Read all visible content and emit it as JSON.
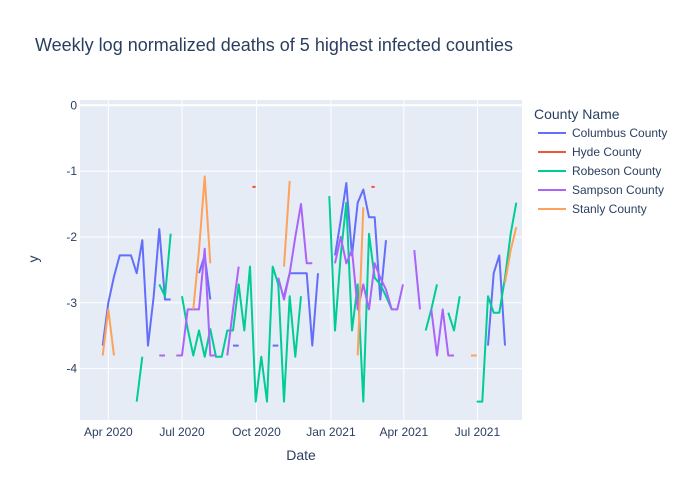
{
  "chart_data": {
    "type": "line",
    "title": "Weekly log normalized deaths of 5 highest infected counties",
    "xlabel": "Date",
    "ylabel": "y",
    "xlim": [
      "2020-02-26",
      "2021-08-25"
    ],
    "ylim": [
      -4.78,
      0.08
    ],
    "x_ticks": [
      {
        "date": "2020-04-01",
        "label": "Apr 2020"
      },
      {
        "date": "2020-07-01",
        "label": "Jul 2020"
      },
      {
        "date": "2020-10-01",
        "label": "Oct 2020"
      },
      {
        "date": "2021-01-01",
        "label": "Jan 2021"
      },
      {
        "date": "2021-04-01",
        "label": "Apr 2021"
      },
      {
        "date": "2021-07-01",
        "label": "Jul 2021"
      }
    ],
    "y_ticks": [
      0,
      -1,
      -2,
      -3,
      -4
    ],
    "grid": true,
    "legend": {
      "title": "County Name",
      "position": "right"
    },
    "series": [
      {
        "name": "Columbus County",
        "color": "#636efa",
        "segments": [
          [
            [
              "2020-03-25",
              -3.65
            ],
            [
              "2020-04-01",
              -3.0
            ],
            [
              "2020-04-08",
              -2.6
            ],
            [
              "2020-04-15",
              -2.28
            ],
            [
              "2020-04-22",
              -2.28
            ],
            [
              "2020-04-29",
              -2.28
            ],
            [
              "2020-05-06",
              -2.55
            ],
            [
              "2020-05-13",
              -2.05
            ],
            [
              "2020-05-20",
              -3.65
            ],
            [
              "2020-05-27",
              -2.9
            ],
            [
              "2020-06-03",
              -1.88
            ],
            [
              "2020-06-10",
              -2.95
            ],
            [
              "2020-06-17",
              -2.95
            ]
          ],
          [
            [
              "2020-07-22",
              -2.55
            ],
            [
              "2020-07-29",
              -2.28
            ],
            [
              "2020-08-05",
              -2.95
            ]
          ],
          [
            [
              "2020-09-02",
              -3.65
            ],
            [
              "2020-09-09",
              -3.65
            ]
          ],
          [
            [
              "2020-10-21",
              -3.65
            ],
            [
              "2020-10-28",
              -3.65
            ]
          ],
          [
            [
              "2020-11-04",
              -2.9
            ],
            [
              "2020-11-11",
              -2.55
            ],
            [
              "2020-11-18",
              -2.55
            ],
            [
              "2020-11-25",
              -2.55
            ],
            [
              "2020-12-02",
              -2.55
            ],
            [
              "2020-12-09",
              -3.65
            ],
            [
              "2020-12-16",
              -2.55
            ]
          ],
          [
            [
              "2021-01-06",
              -2.28
            ],
            [
              "2021-01-13",
              -1.75
            ],
            [
              "2021-01-20",
              -1.18
            ],
            [
              "2021-01-27",
              -2.28
            ],
            [
              "2021-02-03",
              -1.48
            ],
            [
              "2021-02-10",
              -1.28
            ],
            [
              "2021-02-17",
              -1.7
            ],
            [
              "2021-02-24",
              -1.7
            ],
            [
              "2021-03-03",
              -2.95
            ],
            [
              "2021-03-10",
              -2.05
            ]
          ],
          [
            [
              "2021-07-14",
              -3.65
            ],
            [
              "2021-07-21",
              -2.55
            ],
            [
              "2021-07-28",
              -2.28
            ],
            [
              "2021-08-04",
              -3.65
            ]
          ]
        ]
      },
      {
        "name": "Hyde County",
        "color": "#ef553b",
        "segments": [
          [
            [
              "2020-09-26",
              -1.24
            ],
            [
              "2020-09-30",
              -1.24
            ]
          ],
          [
            [
              "2021-02-20",
              -1.24
            ],
            [
              "2021-02-24",
              -1.24
            ]
          ]
        ]
      },
      {
        "name": "Robeson County",
        "color": "#00cc96",
        "segments": [
          [
            [
              "2020-05-06",
              -4.5
            ],
            [
              "2020-05-13",
              -3.82
            ]
          ],
          [
            [
              "2020-06-03",
              -2.72
            ],
            [
              "2020-06-10",
              -2.9
            ],
            [
              "2020-06-17",
              -1.95
            ]
          ],
          [
            [
              "2020-07-01",
              -2.9
            ],
            [
              "2020-07-08",
              -3.4
            ],
            [
              "2020-07-15",
              -3.8
            ],
            [
              "2020-07-22",
              -3.42
            ],
            [
              "2020-07-29",
              -3.82
            ],
            [
              "2020-08-05",
              -3.4
            ],
            [
              "2020-08-12",
              -3.82
            ],
            [
              "2020-08-19",
              -3.82
            ],
            [
              "2020-08-26",
              -3.42
            ],
            [
              "2020-09-02",
              -3.42
            ],
            [
              "2020-09-09",
              -2.72
            ],
            [
              "2020-09-16",
              -3.42
            ],
            [
              "2020-09-23",
              -2.45
            ],
            [
              "2020-09-30",
              -4.5
            ],
            [
              "2020-10-07",
              -3.82
            ],
            [
              "2020-10-14",
              -4.5
            ],
            [
              "2020-10-21",
              -2.45
            ],
            [
              "2020-10-28",
              -2.72
            ],
            [
              "2020-11-04",
              -4.5
            ],
            [
              "2020-11-11",
              -2.9
            ],
            [
              "2020-11-18",
              -3.82
            ],
            [
              "2020-11-25",
              -2.9
            ]
          ],
          [
            [
              "2020-12-30",
              -1.38
            ],
            [
              "2021-01-06",
              -3.42
            ],
            [
              "2021-01-13",
              -2.28
            ],
            [
              "2021-01-20",
              -1.48
            ],
            [
              "2021-01-27",
              -3.42
            ],
            [
              "2021-02-03",
              -2.72
            ],
            [
              "2021-02-10",
              -4.5
            ],
            [
              "2021-02-17",
              -1.95
            ],
            [
              "2021-02-24",
              -2.62
            ],
            [
              "2021-03-03",
              -2.72
            ],
            [
              "2021-03-10",
              -2.9
            ],
            [
              "2021-03-17",
              -3.1
            ]
          ],
          [
            [
              "2021-04-28",
              -3.42
            ],
            [
              "2021-05-05",
              -3.1
            ],
            [
              "2021-05-12",
              -2.72
            ]
          ],
          [
            [
              "2021-05-26",
              -3.15
            ],
            [
              "2021-06-02",
              -3.42
            ],
            [
              "2021-06-09",
              -2.9
            ]
          ],
          [
            [
              "2021-06-30",
              -4.5
            ],
            [
              "2021-07-07",
              -4.5
            ],
            [
              "2021-07-14",
              -2.9
            ],
            [
              "2021-07-21",
              -3.15
            ],
            [
              "2021-07-28",
              -3.15
            ],
            [
              "2021-08-04",
              -2.62
            ],
            [
              "2021-08-11",
              -1.95
            ],
            [
              "2021-08-18",
              -1.48
            ]
          ]
        ]
      },
      {
        "name": "Sampson County",
        "color": "#ab63fa",
        "segments": [
          [
            [
              "2020-06-03",
              -3.8
            ],
            [
              "2020-06-10",
              -3.8
            ]
          ],
          [
            [
              "2020-06-24",
              -3.8
            ],
            [
              "2020-07-01",
              -3.8
            ],
            [
              "2020-07-08",
              -3.1
            ],
            [
              "2020-07-15",
              -3.1
            ],
            [
              "2020-07-22",
              -3.1
            ],
            [
              "2020-07-29",
              -2.18
            ],
            [
              "2020-08-05",
              -3.8
            ],
            [
              "2020-08-12",
              -3.8
            ]
          ],
          [
            [
              "2020-08-26",
              -3.8
            ],
            [
              "2020-09-02",
              -3.1
            ],
            [
              "2020-09-09",
              -2.45
            ]
          ],
          [
            [
              "2020-10-28",
              -2.62
            ],
            [
              "2020-11-04",
              -2.95
            ],
            [
              "2020-11-11",
              -2.55
            ],
            [
              "2020-11-18",
              -2.0
            ],
            [
              "2020-11-25",
              -1.5
            ],
            [
              "2020-12-02",
              -2.4
            ],
            [
              "2020-12-09",
              -2.4
            ]
          ],
          [
            [
              "2021-01-06",
              -2.4
            ],
            [
              "2021-01-13",
              -2.0
            ],
            [
              "2021-01-20",
              -2.4
            ],
            [
              "2021-01-27",
              -2.2
            ],
            [
              "2021-02-03",
              -3.1
            ],
            [
              "2021-02-10",
              -2.72
            ],
            [
              "2021-02-17",
              -3.1
            ],
            [
              "2021-02-24",
              -2.4
            ],
            [
              "2021-03-03",
              -2.62
            ],
            [
              "2021-03-10",
              -2.8
            ],
            [
              "2021-03-17",
              -3.1
            ],
            [
              "2021-03-24",
              -3.1
            ],
            [
              "2021-03-31",
              -2.72
            ]
          ],
          [
            [
              "2021-04-14",
              -2.2
            ],
            [
              "2021-04-21",
              -3.1
            ]
          ],
          [
            [
              "2021-05-05",
              -3.1
            ],
            [
              "2021-05-12",
              -3.8
            ],
            [
              "2021-05-19",
              -3.1
            ],
            [
              "2021-05-26",
              -3.8
            ],
            [
              "2021-06-02",
              -3.8
            ]
          ]
        ]
      },
      {
        "name": "Stanly County",
        "color": "#ffa15a",
        "segments": [
          [
            [
              "2020-03-25",
              -3.8
            ],
            [
              "2020-04-01",
              -3.1
            ],
            [
              "2020-04-08",
              -3.8
            ]
          ],
          [
            [
              "2020-07-15",
              -3.1
            ],
            [
              "2020-07-22",
              -2.2
            ],
            [
              "2020-07-29",
              -1.08
            ],
            [
              "2020-08-05",
              -2.4
            ]
          ],
          [
            [
              "2020-11-04",
              -2.45
            ],
            [
              "2020-11-11",
              -1.15
            ]
          ],
          [
            [
              "2021-02-03",
              -3.8
            ],
            [
              "2021-02-10",
              -1.55
            ]
          ],
          [
            [
              "2021-06-23",
              -3.8
            ],
            [
              "2021-06-30",
              -3.8
            ]
          ],
          [
            [
              "2021-08-04",
              -2.7
            ],
            [
              "2021-08-11",
              -2.2
            ],
            [
              "2021-08-18",
              -1.85
            ]
          ]
        ]
      }
    ]
  }
}
